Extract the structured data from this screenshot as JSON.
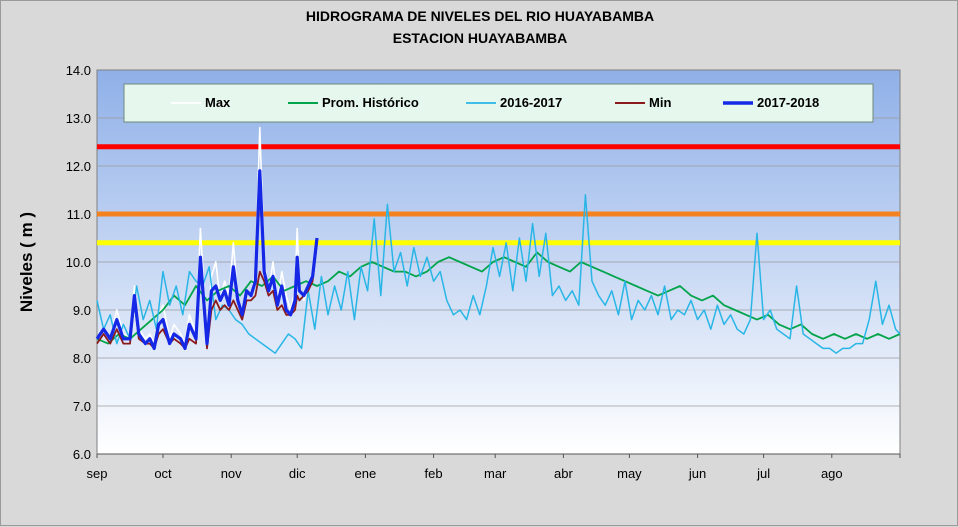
{
  "chart_data": {
    "type": "line",
    "title": "HIDROGRAMA DE NIVELES DEL RIO  HUAYABAMBA",
    "subtitle": "ESTACION HUAYABAMBA",
    "ylabel": "Niveles ( m )",
    "xlabel": "",
    "ylim": [
      6.0,
      14.0
    ],
    "yticks": [
      "6.0",
      "7.0",
      "8.0",
      "9.0",
      "10.0",
      "11.0",
      "12.0",
      "13.0",
      "14.0"
    ],
    "xlim": [
      0,
      365
    ],
    "months": [
      {
        "label": "sep",
        "day": 0
      },
      {
        "label": "oct",
        "day": 30
      },
      {
        "label": "nov",
        "day": 61
      },
      {
        "label": "dic",
        "day": 91
      },
      {
        "label": "ene",
        "day": 122
      },
      {
        "label": "feb",
        "day": 153
      },
      {
        "label": "mar",
        "day": 181
      },
      {
        "label": "abr",
        "day": 212
      },
      {
        "label": "may",
        "day": 242
      },
      {
        "label": "jun",
        "day": 273
      },
      {
        "label": "jul",
        "day": 303
      },
      {
        "label": "ago",
        "day": 334
      }
    ],
    "legend_position": "top",
    "grid": true,
    "thresholds": [
      {
        "value": 12.4,
        "color": "#ff0000"
      },
      {
        "value": 11.0,
        "color": "#f58220"
      },
      {
        "value": 10.4,
        "color": "#ffff00"
      }
    ],
    "series": [
      {
        "name": "Max",
        "color": "#ffffff",
        "x": [
          0,
          3,
          6,
          9,
          12,
          15,
          17,
          19,
          22,
          24,
          26,
          28,
          30,
          33,
          35,
          38,
          40,
          42,
          45,
          47,
          50,
          52,
          54,
          56,
          58,
          60,
          62,
          64,
          66,
          68,
          70,
          72,
          74,
          76,
          78,
          80,
          82,
          84,
          86,
          88,
          90,
          91,
          92,
          94,
          96,
          98,
          100
        ],
        "y": [
          8.4,
          8.6,
          8.4,
          9.0,
          8.5,
          8.4,
          9.5,
          8.6,
          8.4,
          8.5,
          8.3,
          8.9,
          9.1,
          8.4,
          8.7,
          8.5,
          8.3,
          8.9,
          8.5,
          10.7,
          8.4,
          9.7,
          10.0,
          9.2,
          9.6,
          9.3,
          10.4,
          9.2,
          8.9,
          9.4,
          9.3,
          9.8,
          12.8,
          10.0,
          9.4,
          10.0,
          9.2,
          9.8,
          9.3,
          9.0,
          9.4,
          10.7,
          9.5,
          9.2,
          9.5,
          9.7,
          10.4
        ]
      },
      {
        "name": "Prom. Histórico",
        "color": "#00a44a",
        "x": [
          0,
          5,
          10,
          15,
          20,
          25,
          30,
          35,
          40,
          45,
          50,
          55,
          60,
          65,
          70,
          75,
          80,
          85,
          90,
          95,
          100,
          105,
          110,
          115,
          120,
          125,
          130,
          135,
          140,
          145,
          150,
          155,
          160,
          165,
          170,
          175,
          180,
          185,
          190,
          195,
          200,
          205,
          210,
          215,
          220,
          225,
          230,
          235,
          240,
          245,
          250,
          255,
          260,
          265,
          270,
          275,
          280,
          285,
          290,
          295,
          300,
          305,
          310,
          315,
          320,
          325,
          330,
          335,
          340,
          345,
          350,
          355,
          360,
          365
        ],
        "y": [
          8.4,
          8.3,
          8.5,
          8.4,
          8.6,
          8.8,
          9.0,
          9.3,
          9.1,
          9.5,
          9.2,
          9.4,
          9.5,
          9.3,
          9.6,
          9.5,
          9.7,
          9.4,
          9.5,
          9.6,
          9.5,
          9.6,
          9.8,
          9.7,
          9.9,
          10.0,
          9.9,
          9.8,
          9.8,
          9.7,
          9.8,
          10.0,
          10.1,
          10.0,
          9.9,
          9.8,
          10.0,
          10.1,
          10.0,
          9.9,
          10.2,
          10.0,
          9.9,
          9.8,
          10.0,
          9.9,
          9.8,
          9.7,
          9.6,
          9.5,
          9.4,
          9.3,
          9.4,
          9.5,
          9.3,
          9.2,
          9.3,
          9.1,
          9.0,
          8.9,
          8.8,
          8.9,
          8.7,
          8.6,
          8.7,
          8.5,
          8.4,
          8.5,
          8.4,
          8.5,
          8.4,
          8.5,
          8.4,
          8.5
        ]
      },
      {
        "name": "2016-2017",
        "color": "#29b6e6",
        "x": [
          0,
          3,
          6,
          9,
          12,
          15,
          18,
          21,
          24,
          27,
          30,
          33,
          36,
          39,
          42,
          45,
          48,
          51,
          54,
          57,
          60,
          63,
          66,
          69,
          72,
          75,
          78,
          81,
          84,
          87,
          90,
          93,
          96,
          99,
          102,
          105,
          108,
          111,
          114,
          117,
          120,
          123,
          126,
          129,
          132,
          135,
          138,
          141,
          144,
          147,
          150,
          153,
          156,
          159,
          162,
          165,
          168,
          171,
          174,
          177,
          180,
          183,
          186,
          189,
          192,
          195,
          198,
          201,
          204,
          207,
          210,
          213,
          216,
          219,
          222,
          225,
          228,
          231,
          234,
          237,
          240,
          243,
          246,
          249,
          252,
          255,
          258,
          261,
          264,
          267,
          270,
          273,
          276,
          279,
          282,
          285,
          288,
          291,
          294,
          297,
          300,
          303,
          306,
          309,
          312,
          315,
          318,
          321,
          324,
          327,
          330,
          333,
          336,
          339,
          342,
          345,
          348,
          351,
          354,
          357,
          360,
          363,
          365
        ],
        "y": [
          9.2,
          8.6,
          8.9,
          8.3,
          8.7,
          8.4,
          9.5,
          8.8,
          9.2,
          8.6,
          9.8,
          9.1,
          9.5,
          8.9,
          9.8,
          9.6,
          9.5,
          9.9,
          8.8,
          9.1,
          9.0,
          8.8,
          8.7,
          8.5,
          8.4,
          8.3,
          8.2,
          8.1,
          8.3,
          8.5,
          8.4,
          8.2,
          9.4,
          8.6,
          9.7,
          8.9,
          9.5,
          9.0,
          9.8,
          8.8,
          9.9,
          9.4,
          10.9,
          9.3,
          11.2,
          9.8,
          10.2,
          9.5,
          10.3,
          9.7,
          10.1,
          9.6,
          9.8,
          9.2,
          8.9,
          9.0,
          8.8,
          9.3,
          8.9,
          9.5,
          10.3,
          9.7,
          10.4,
          9.4,
          10.5,
          9.6,
          10.8,
          9.7,
          10.6,
          9.3,
          9.5,
          9.2,
          9.4,
          9.1,
          11.4,
          9.6,
          9.3,
          9.1,
          9.4,
          8.9,
          9.6,
          8.8,
          9.2,
          9.0,
          9.3,
          8.9,
          9.5,
          8.8,
          9.0,
          8.9,
          9.2,
          8.8,
          9.0,
          8.6,
          9.1,
          8.7,
          8.9,
          8.6,
          8.5,
          8.8,
          10.6,
          8.8,
          9.0,
          8.6,
          8.5,
          8.4,
          9.5,
          8.5,
          8.4,
          8.3,
          8.2,
          8.2,
          8.1,
          8.2,
          8.2,
          8.3,
          8.3,
          8.8,
          9.6,
          8.7,
          9.1,
          8.6,
          8.5
        ]
      },
      {
        "name": "Min",
        "color": "#8b1a1a",
        "x": [
          0,
          3,
          6,
          9,
          12,
          15,
          17,
          19,
          22,
          24,
          26,
          28,
          30,
          33,
          35,
          38,
          40,
          42,
          45,
          47,
          50,
          52,
          54,
          56,
          58,
          60,
          62,
          64,
          66,
          68,
          70,
          72,
          74,
          76,
          78,
          80,
          82,
          84,
          86,
          88,
          90,
          91,
          92,
          94,
          96,
          98,
          100
        ],
        "y": [
          8.3,
          8.5,
          8.3,
          8.6,
          8.3,
          8.3,
          9.2,
          8.4,
          8.3,
          8.3,
          8.2,
          8.5,
          8.6,
          8.3,
          8.4,
          8.3,
          8.2,
          8.4,
          8.3,
          9.9,
          8.2,
          9.0,
          9.2,
          9.0,
          9.1,
          9.0,
          9.2,
          9.0,
          8.8,
          9.2,
          9.2,
          9.3,
          9.8,
          9.6,
          9.3,
          9.4,
          9.0,
          9.1,
          8.9,
          8.9,
          9.0,
          9.3,
          9.2,
          9.3,
          9.4,
          9.6,
          10.4
        ]
      },
      {
        "name": "2017-2018",
        "color": "#1428e6",
        "x": [
          0,
          3,
          6,
          9,
          12,
          15,
          17,
          19,
          22,
          24,
          26,
          28,
          30,
          33,
          35,
          38,
          40,
          42,
          45,
          47,
          50,
          52,
          54,
          56,
          58,
          60,
          62,
          64,
          66,
          68,
          70,
          72,
          74,
          76,
          78,
          80,
          82,
          84,
          86,
          88,
          90,
          91,
          92,
          94,
          96,
          98,
          100
        ],
        "y": [
          8.4,
          8.6,
          8.4,
          8.8,
          8.4,
          8.4,
          9.3,
          8.5,
          8.3,
          8.4,
          8.2,
          8.7,
          8.8,
          8.3,
          8.5,
          8.4,
          8.2,
          8.7,
          8.4,
          10.1,
          8.3,
          9.4,
          9.5,
          9.2,
          9.4,
          9.1,
          9.9,
          9.2,
          8.9,
          9.4,
          9.3,
          9.6,
          11.9,
          9.8,
          9.4,
          9.7,
          9.1,
          9.5,
          9.0,
          8.9,
          9.2,
          10.1,
          9.4,
          9.3,
          9.5,
          9.7,
          10.5
        ]
      }
    ]
  }
}
